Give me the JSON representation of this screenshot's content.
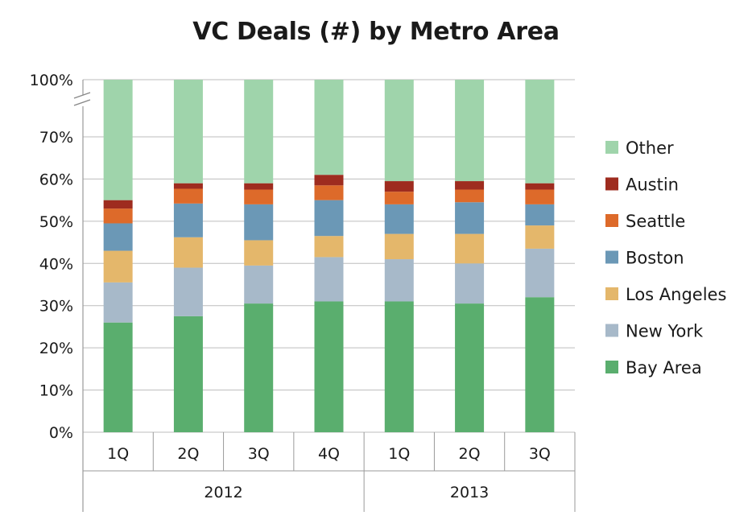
{
  "chart_data": {
    "type": "bar",
    "stacked": true,
    "title": "VC Deals (#) by Metro Area",
    "xlabel": "",
    "ylabel": "",
    "categories": [
      "1Q",
      "2Q",
      "3Q",
      "4Q",
      "1Q",
      "2Q",
      "3Q"
    ],
    "groups": [
      {
        "label": "2012",
        "count": 4
      },
      {
        "label": "2013",
        "count": 3
      }
    ],
    "y_ticks": [
      "0%",
      "10%",
      "20%",
      "30%",
      "40%",
      "50%",
      "60%",
      "70%",
      "100%"
    ],
    "ylim": [
      0,
      100
    ],
    "axis_break": [
      70,
      100
    ],
    "legend_position": "right",
    "grid": true,
    "series": [
      {
        "name": "Bay Area",
        "color": "#5aae6e",
        "values": [
          26,
          27.5,
          30.5,
          31,
          31,
          30.5,
          32
        ]
      },
      {
        "name": "New York",
        "color": "#a7b9c9",
        "values": [
          9.5,
          11.5,
          9,
          10.5,
          10,
          9.5,
          11.5
        ]
      },
      {
        "name": "Los Angeles",
        "color": "#e4b76b",
        "values": [
          7.5,
          7.2,
          6,
          5,
          6,
          7,
          5.5
        ]
      },
      {
        "name": "Boston",
        "color": "#6b98b6",
        "values": [
          6.5,
          8,
          8.5,
          8.5,
          7,
          7.5,
          5
        ]
      },
      {
        "name": "Seattle",
        "color": "#dd6a2a",
        "values": [
          3.5,
          3.5,
          3.5,
          3.5,
          3,
          3,
          3.5
        ]
      },
      {
        "name": "Austin",
        "color": "#9e2c1f",
        "values": [
          2,
          1.3,
          1.5,
          2.5,
          2.5,
          2,
          1.5
        ]
      },
      {
        "name": "Other",
        "color": "#9fd4ab",
        "values": [
          45,
          41,
          41,
          39,
          40.5,
          40.5,
          41
        ]
      }
    ]
  }
}
